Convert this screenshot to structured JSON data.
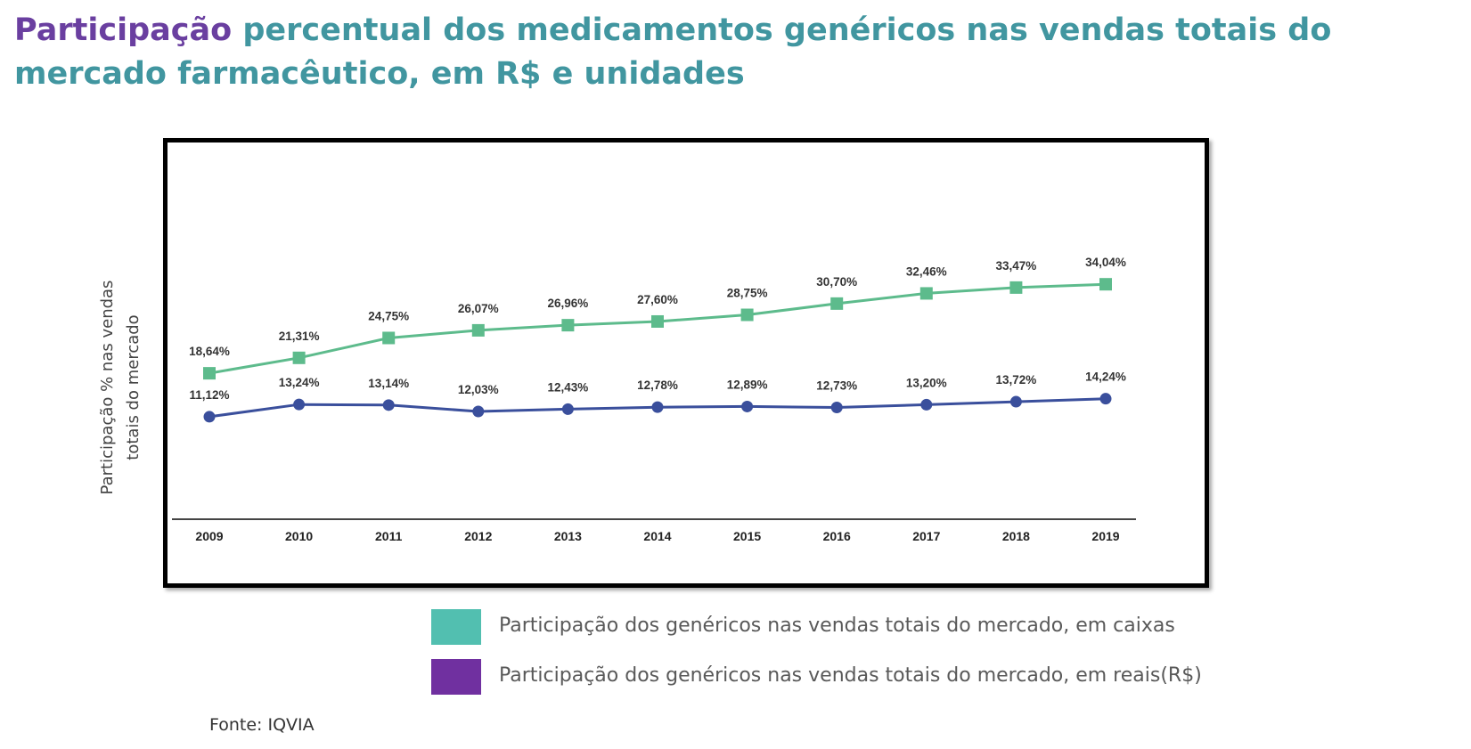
{
  "title": {
    "accent": "Participação",
    "rest": " percentual dos medicamentos genéricos nas vendas totais do mercado farmacêutico, em R$ e unidades"
  },
  "chart_data": {
    "type": "line",
    "title": "Participação percentual dos medicamentos genéricos nas vendas totais do mercado farmacêutico, em R$ e unidades",
    "ylabel_line1": "Participação % nas vendas",
    "ylabel_line2": "totais do mercado",
    "xlabel": "",
    "categories": [
      "2009",
      "2010",
      "2011",
      "2012",
      "2013",
      "2014",
      "2015",
      "2016",
      "2017",
      "2018",
      "2019"
    ],
    "ylim": [
      0,
      40
    ],
    "grid": false,
    "series": [
      {
        "name": "Participação dos genéricos nas vendas totais do mercado, em caixas",
        "color": "#5dbb8c",
        "marker": "square",
        "values": [
          18.64,
          21.31,
          24.75,
          26.07,
          26.96,
          27.6,
          28.75,
          30.7,
          32.46,
          33.47,
          34.04
        ],
        "labels": [
          "18,64%",
          "21,31%",
          "24,75%",
          "26,07%",
          "26,96%",
          "27,60%",
          "28,75%",
          "30,70%",
          "32,46%",
          "33,47%",
          "34,04%"
        ]
      },
      {
        "name": "Participação dos genéricos nas vendas totais do mercado, em reais(R$)",
        "color": "#3a4f9c",
        "marker": "circle",
        "values": [
          11.12,
          13.24,
          13.14,
          12.03,
          12.43,
          12.78,
          12.89,
          12.73,
          13.2,
          13.72,
          14.24
        ],
        "labels": [
          "11,12%",
          "13,24%",
          "13,14%",
          "12,03%",
          "12,43%",
          "12,78%",
          "12,89%",
          "12,73%",
          "13,20%",
          "13,72%",
          "14,24%"
        ]
      }
    ]
  },
  "legend": {
    "position": "bottom",
    "items": [
      {
        "label": "Participação dos genéricos nas vendas totais do mercado, em caixas",
        "color": "#52bfb0"
      },
      {
        "label": "Participação dos genéricos nas vendas totais do mercado, em reais(R$)",
        "color": "#7030a0"
      }
    ]
  },
  "source": "Fonte: IQVIA"
}
